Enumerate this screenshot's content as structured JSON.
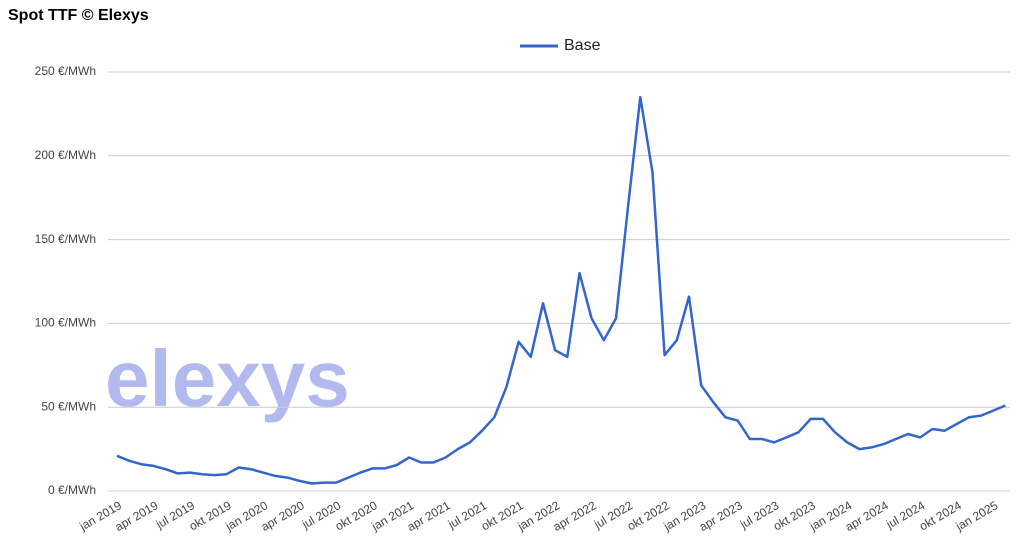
{
  "chart_data": {
    "type": "line",
    "title": "Spot TTF © Elexys",
    "watermark": "elexys",
    "categories": [
      "jan 2019",
      null,
      null,
      "apr 2019",
      null,
      null,
      "jul 2019",
      null,
      null,
      "okt 2019",
      null,
      null,
      "jan 2020",
      null,
      null,
      "apr 2020",
      null,
      null,
      "jul 2020",
      null,
      null,
      "okt 2020",
      null,
      null,
      "jan 2021",
      null,
      null,
      "apr 2021",
      null,
      null,
      "jul 2021",
      null,
      null,
      "okt 2021",
      null,
      null,
      "jan 2022",
      null,
      null,
      "apr 2022",
      null,
      null,
      "jul 2022",
      null,
      null,
      "okt 2022",
      null,
      null,
      "jan 2023",
      null,
      null,
      "apr 2023",
      null,
      null,
      "jul 2023",
      null,
      null,
      "okt 2023",
      null,
      null,
      "jan 2024",
      null,
      null,
      "apr 2024",
      null,
      null,
      "jul 2024",
      null,
      null,
      "okt 2024",
      null,
      null,
      "jan 2025",
      null
    ],
    "series": [
      {
        "name": "Base",
        "color": "#3366cc",
        "values": [
          21,
          18,
          16,
          15,
          13,
          10.5,
          11,
          10,
          9.5,
          10,
          14,
          13,
          11,
          9,
          8,
          6,
          4.5,
          5,
          5,
          8,
          11,
          13.5,
          13.5,
          15.5,
          20,
          17,
          17,
          20,
          25,
          29,
          36,
          44,
          62,
          89,
          80,
          112,
          84,
          80,
          130,
          103,
          90,
          103,
          170,
          235,
          190,
          81,
          90,
          116,
          63,
          53,
          44,
          42,
          31,
          31,
          29,
          32,
          35,
          43,
          43,
          35,
          29,
          25,
          26,
          28,
          31,
          34,
          32,
          37,
          36,
          40,
          44,
          45,
          48,
          51
        ]
      }
    ],
    "ylim": [
      0,
      250
    ],
    "yticks": [
      {
        "value": 0,
        "label": "0 €/MWh"
      },
      {
        "value": 50,
        "label": "50 €/MWh"
      },
      {
        "value": 100,
        "label": "100 €/MWh"
      },
      {
        "value": 150,
        "label": "150 €/MWh"
      },
      {
        "value": 200,
        "label": "200 €/MWh"
      },
      {
        "value": 250,
        "label": "250 €/MWh"
      }
    ],
    "grid": true,
    "legend": "top"
  }
}
